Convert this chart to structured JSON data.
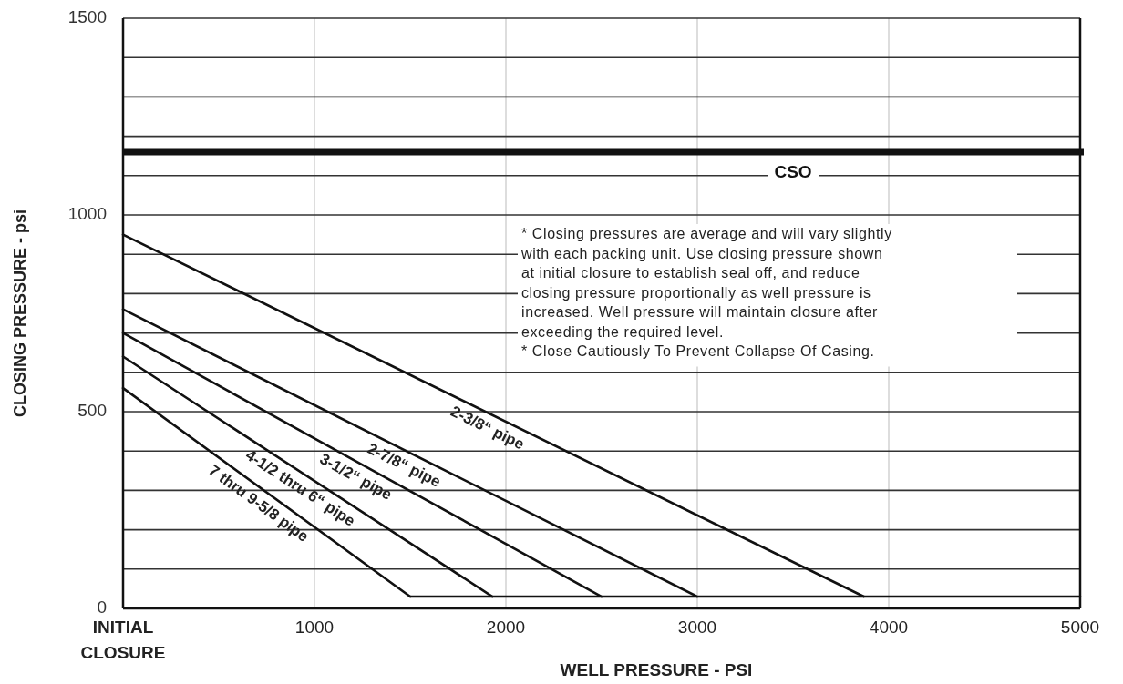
{
  "chart_data": {
    "type": "line",
    "xlabel": "WELL PRESSURE - PSI",
    "ylabel": "CLOSING PRESSURE - psi",
    "xlim": [
      0,
      5000
    ],
    "ylim": [
      0,
      1500
    ],
    "xticks": [
      {
        "value": 0,
        "label": "INITIAL\nCLOSURE"
      },
      1000,
      2000,
      3000,
      4000,
      5000
    ],
    "yticks": [
      0,
      {
        "value": 100,
        "label": null
      },
      {
        "value": 200,
        "label": null
      },
      {
        "value": 300,
        "label": null
      },
      {
        "value": 400,
        "label": null
      },
      500,
      {
        "value": 600,
        "label": null
      },
      {
        "value": 700,
        "label": null
      },
      {
        "value": 800,
        "label": null
      },
      {
        "value": 900,
        "label": null
      },
      1000,
      {
        "value": 1100,
        "label": null
      },
      {
        "value": 1200,
        "label": null
      },
      {
        "value": 1300,
        "label": null
      },
      {
        "value": 1400,
        "label": null
      },
      1500
    ],
    "grid": true,
    "marker": "none",
    "line_style": "solid",
    "series": [
      {
        "name": "7 thru 9-5/8 pipe",
        "color": "#111111",
        "x": [
          0,
          1500
        ],
        "values": [
          560,
          30
        ]
      },
      {
        "name": "4-1/2 thru 6“ pipe",
        "color": "#111111",
        "x": [
          0,
          1930
        ],
        "values": [
          640,
          30
        ]
      },
      {
        "name": "3-1/2“ pipe",
        "color": "#111111",
        "x": [
          0,
          2500
        ],
        "values": [
          700,
          30
        ]
      },
      {
        "name": "2-7/8“ pipe",
        "color": "#111111",
        "x": [
          0,
          3000
        ],
        "values": [
          760,
          30
        ]
      },
      {
        "name": "2-3/8“ pipe",
        "color": "#111111",
        "x": [
          0,
          3870
        ],
        "values": [
          950,
          30
        ]
      },
      {
        "color": "#111111",
        "x": [
          1500,
          5000
        ],
        "values": [
          30,
          30
        ]
      }
    ],
    "ref_lines": [
      {
        "axis": "y",
        "value": 1160,
        "label": "CSO",
        "color": "#111111"
      }
    ],
    "annotations": [
      "* Closing pressures are average and will vary slightly\nwith each packing unit.  Use closing pressure shown\nat initial closure to establish seal off, and reduce\nclosing pressure proportionally as well pressure is\nincreased.   Well pressure will maintain closure after\nexceeding the required level.",
      "* Close Cautiously To Prevent Collapse Of Casing."
    ]
  }
}
